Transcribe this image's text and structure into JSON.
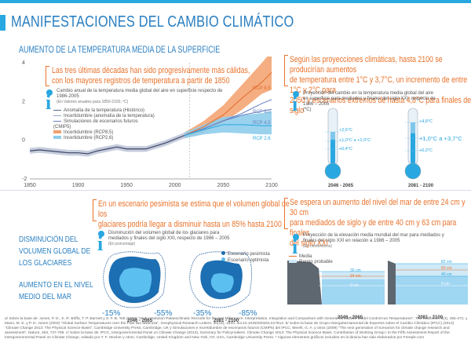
{
  "title": "MANIFESTACIONES DEL CAMBIO CLIMÁTICO",
  "section_temperature": "AUMENTO DE LA TEMPERATURA MEDIA DE LA SUPERFICIE",
  "callout_top_left": [
    "Las tres últimas décadas han sido progresivamente más cálidas,",
    "con los mayores registros de temperatura a partir de 1850"
  ],
  "callout_top_right": [
    "Según las proyecciones climáticas, hasta 2100 se producirían aumentos",
    "de temperatura entre 1°C y 3,7°C, un incremento de entre 1°C y 2°C para",
    "2050 y escenarios extremos de hasta 4,8°C para finales de siglo"
  ],
  "callout_mid_left": [
    "En un escenario pesimista se estima que el volumen global de los",
    "glaciares podría llegar a disminuir hasta un 85% hasta 2100"
  ],
  "callout_mid_right": [
    "Se espera un aumento del nivel del mar de entre 24 cm y 30 cm",
    "para mediados de siglo y de entre 40 cm y 63 cm para finales",
    "del siglo XXI"
  ],
  "chart_info": {
    "text": [
      "Cambio anual de la temperatura media global del aire en superficie respecto de",
      "1986-2005"
    ],
    "note": "(En Valores anuales para 1850-2100, ºC)"
  },
  "legend": [
    {
      "label": "Anomalía de la temperatura (Histórico)",
      "color": "#5a6a8a"
    },
    {
      "label": "Incertidumbre (anomalía de la temperatura)",
      "color": "#9aa6c0"
    },
    {
      "label": "Simulaciones de escenarios futuros (CMIP5)",
      "color": "#6a7fbf"
    },
    {
      "label": "Incertidumbre (RCP8,5)",
      "color": "#f0a070"
    },
    {
      "label": "Incertidumbre (RCP2,6)",
      "color": "#8fcdec"
    }
  ],
  "rcp_labels": [
    "RCP 8,5",
    "RCP 6,0",
    "RCP 4,5",
    "RCP 2,6"
  ],
  "thermo_info": [
    "Proyección del cambio en la temperatura media global del aire",
    "en superficie para mediados y finales del siglo XXI, respecto de",
    "1986 – 2005",
    "(ºC)"
  ],
  "thermo_left": {
    "values": [
      "+2,6°C",
      "+1,0°C a +2,0°C",
      "+0,4°C"
    ],
    "period": "2046 - 2065"
  },
  "thermo_right": {
    "values": [
      "+4,8°C",
      "+1,0°C a +3,7°C",
      "+0,3°C"
    ],
    "period": "2081 - 2100"
  },
  "left_headings": {
    "glaciers": [
      "DISMINUCIÓN DEL",
      "VOLUMEN GLOBAL DE",
      "LOS GLACIARES"
    ],
    "sea": [
      "AUMENTO EN EL NIVEL",
      "MEDIO DEL MAR"
    ]
  },
  "glacier_info": [
    "Disminución del volumen global de los glaciares para",
    "mediados y finales del siglo XXI, respecto de 1986 – 2005",
    "(En porcentaje)"
  ],
  "glacier_legend": [
    "Escenario pesimista",
    "Escenario optimista"
  ],
  "glacier_left": {
    "optimistic": "-15%",
    "pessimistic": "-55%",
    "period": "2046 - 2065"
  },
  "glacier_right": {
    "optimistic": "-35%",
    "pessimistic": "-85%",
    "period": "2081 - 2100"
  },
  "sea_info": [
    "Proyección de la elevación media mundial del mar para mediados y",
    "finales del siglo XXI en relación a 1986 – 2005",
    "(En centímetros)"
  ],
  "sea_legend": [
    "Media",
    "Rango probable"
  ],
  "sea_left": {
    "levels": [
      "30 cm",
      "24 cm",
      "0 cm"
    ],
    "period": "2046 - 2065"
  },
  "sea_right": {
    "levels": [
      "82 cm",
      "63 cm",
      "40 cm",
      "0 cm"
    ],
    "period": "2081 - 2100"
  },
  "footer": "a/ Sobre la base de: Jones, P. D., K. R. Briffa, T. P. Barnett y S. F. B. Tett (1998) \"High-resolution Palaeoclimatic Records for the last Millennium: Interpretation, Integration and Comparison with General Circulation Model Control-run Temperatures\", The Holocene, 8(4), 455-471; y Mann, M. E. y P. D. Jones (2003) \"Global Surface Temperatures over the Past two Millennia\", Geophysical Research Letters, 30(15), 1820, doi:10.1029/2003GL017814. b/ Sobre la base de Grupo Intergubernamental de Expertos sobre el Cambio Climático (IPCC) (2013) \"Climate Change 2013: The Physical Science Basis\", Cambridge University Press, Cambridge, UK y Simulaciones e incertidumbre de escenarios futuros (CMIP5) del IPCC, Meehl, G. A. y otros (2009) \"The next generation of scenarios for climate change research and assessment\", Nature, 463, 747-756. c/ Sobre la base de: IPCC, Intergovernmental Panel on Climate Change (2013), Summary for Policymakers. Climate Change 2013: The Physical Science Basis. Contribution of Working Group I to the Fifth Assessment Report of the Intergovernmental Panel on Climate Change, editado por T. F. Stocker y otros, Cambridge, United Kingdom and New York, NY, USA, Cambridge University Press. * Algunos elementos gráficos incluidos en la lámina han sido elaborados por Freepik.com",
  "chart_data": {
    "type": "line",
    "title": "Cambio anual de la temperatura media global del aire en superficie respecto de 1986-2005",
    "xlim": [
      1850,
      2100
    ],
    "ylim": [
      -2,
      4
    ],
    "x_ticks": [
      "1850",
      "1900",
      "1950",
      "2000",
      "2050",
      "2100"
    ],
    "y_ticks": [
      "4",
      "2",
      "0",
      "-2"
    ],
    "historical": {
      "x": [
        1850,
        1860,
        1870,
        1880,
        1890,
        1900,
        1910,
        1920,
        1930,
        1940,
        1950,
        1960,
        1970,
        1980,
        1990,
        2000,
        2010
      ],
      "y": [
        -0.55,
        -0.5,
        -0.55,
        -0.6,
        -0.65,
        -0.65,
        -0.7,
        -0.55,
        -0.45,
        -0.35,
        -0.45,
        -0.45,
        -0.45,
        -0.3,
        -0.15,
        0.05,
        0.25
      ]
    },
    "series": [
      {
        "name": "RCP 8,5",
        "x": [
          2010,
          2030,
          2050,
          2070,
          2090,
          2100
        ],
        "y": [
          0.25,
          0.7,
          1.3,
          2.2,
          3.0,
          3.5
        ]
      },
      {
        "name": "RCP 6,0",
        "x": [
          2010,
          2030,
          2050,
          2070,
          2090,
          2100
        ],
        "y": [
          0.25,
          0.6,
          1.0,
          1.4,
          1.9,
          2.1
        ]
      },
      {
        "name": "RCP 4,5",
        "x": [
          2010,
          2030,
          2050,
          2070,
          2090,
          2100
        ],
        "y": [
          0.25,
          0.6,
          1.0,
          1.3,
          1.5,
          1.6
        ]
      },
      {
        "name": "RCP 2,6",
        "x": [
          2010,
          2030,
          2050,
          2070,
          2090,
          2100
        ],
        "y": [
          0.25,
          0.55,
          0.8,
          0.8,
          0.75,
          0.75
        ]
      }
    ],
    "band_rcp85": {
      "x": [
        2010,
        2030,
        2050,
        2070,
        2090,
        2100
      ],
      "low": [
        0.1,
        0.4,
        0.9,
        1.6,
        2.4,
        2.6
      ],
      "high": [
        0.4,
        1.0,
        1.8,
        2.9,
        4.0,
        4.6
      ]
    },
    "band_rcp26": {
      "x": [
        2010,
        2030,
        2050,
        2070,
        2090,
        2100
      ],
      "low": [
        0.1,
        0.3,
        0.4,
        0.35,
        0.3,
        0.3
      ],
      "high": [
        0.4,
        0.8,
        1.2,
        1.3,
        1.4,
        1.5
      ]
    }
  }
}
